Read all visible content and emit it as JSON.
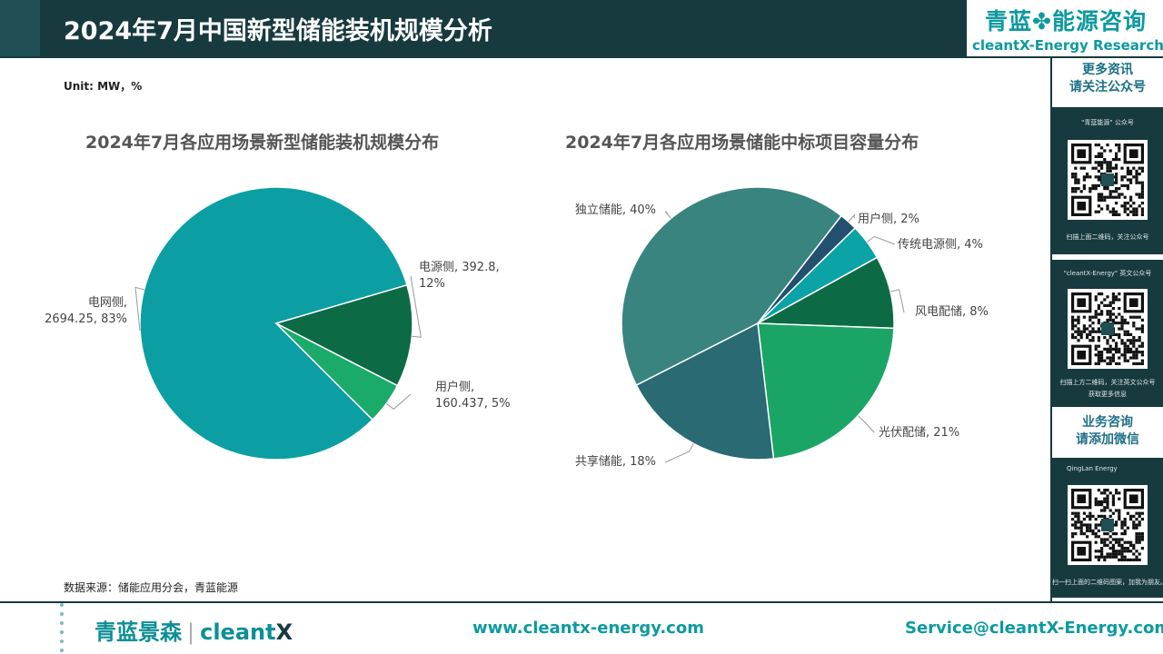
{
  "header": {
    "title": "2024年7月中国新型储能装机规模分析",
    "brand_cn": "青蓝",
    "brand_cn_icon": "clover-icon",
    "brand_cn_suffix": "能源咨询",
    "brand_en": "cleantX-Energy Research"
  },
  "unit": "Unit: MW，%",
  "source": "数据来源：储能应用分会，青蓝能源",
  "chart_data": [
    {
      "type": "pie",
      "title": "2024年7月各应用场景新型储能装机规模分布",
      "slices": [
        {
          "name": "电网侧",
          "value": 2694.25,
          "percent": 83,
          "label_line1": "电网侧,",
          "label_line2": "2694.25, 83%",
          "color": "#0b9fa3"
        },
        {
          "name": "电源侧",
          "value": 392.8,
          "percent": 12,
          "label_line1": "电源侧, 392.8,",
          "label_line2": "12%",
          "color": "#0c6b45"
        },
        {
          "name": "用户侧",
          "value": 160.437,
          "percent": 5,
          "label_line1": "用户侧,",
          "label_line2": "160.437, 5%",
          "color": "#1aab6a"
        }
      ]
    },
    {
      "type": "pie",
      "title": "2024年7月各应用场景储能中标项目容量分布",
      "slices": [
        {
          "name": "独立储能",
          "percent": 40,
          "label": "独立储能, 40%",
          "color": "#3a8480"
        },
        {
          "name": "用户侧",
          "percent": 2,
          "label": "用户侧, 2%",
          "color": "#22506e"
        },
        {
          "name": "传统电源侧",
          "percent": 4,
          "label": "传统电源侧, 4%",
          "color": "#0ba3a5"
        },
        {
          "name": "风电配储",
          "percent": 8,
          "label": "风电配储, 8%",
          "color": "#0c6b45"
        },
        {
          "name": "光伏配储",
          "percent": 21,
          "label": "光伏配储, 21%",
          "color": "#1aa567"
        },
        {
          "name": "共享储能",
          "percent": 18,
          "label": "共享储能, 18%",
          "color": "#2a6a72"
        }
      ]
    }
  ],
  "sidebar": {
    "more_info_line1": "更多资讯",
    "more_info_line2": "请关注公众号",
    "qr1_caption": "\"青蓝能源\" 公众号",
    "qr1_note": "扫描上面二维码，关注公众号",
    "qr2_caption": "\"cleantX-Energy\" 英文公众号",
    "qr2_note1": "扫描上方二维码，关注英文公众号",
    "qr2_note2": "获取更多信息",
    "consult_line1": "业务咨询",
    "consult_line2": "请添加微信",
    "qr3_caption": "QingLan Energy",
    "qr3_note": "扫一扫上面的二维码图案，加我为朋友。"
  },
  "footer": {
    "logo_cn": "青蓝景森",
    "logo_sep": "|",
    "logo_en": "cleant",
    "logo_x": "X",
    "website": "www.cleantx-energy.com",
    "email": "Service@cleantX-Energy.com"
  }
}
